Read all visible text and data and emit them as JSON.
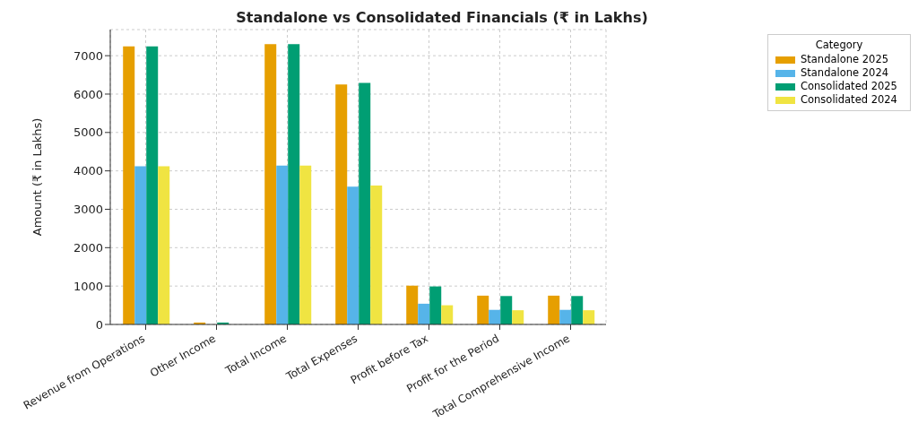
{
  "chart_data": {
    "type": "bar",
    "title": "Standalone vs Consolidated Financials (₹ in Lakhs)",
    "ylabel": "Amount (₹ in Lakhs)",
    "legend_title": "Category",
    "categories": [
      "Revenue from Operations",
      "Other Income",
      "Total Income",
      "Total Expenses",
      "Profit before Tax",
      "Profit for the Period",
      "Total Comprehensive Income"
    ],
    "series": [
      {
        "name": "Standalone 2025",
        "color": "#e69f00",
        "values": [
          7240,
          50,
          7300,
          6250,
          1010,
          750,
          750
        ]
      },
      {
        "name": "Standalone 2024",
        "color": "#56b4e9",
        "values": [
          4120,
          0,
          4140,
          3590,
          540,
          380,
          380
        ]
      },
      {
        "name": "Consolidated 2025",
        "color": "#009e73",
        "values": [
          7240,
          50,
          7300,
          6290,
          990,
          740,
          740
        ]
      },
      {
        "name": "Consolidated 2024",
        "color": "#f0e442",
        "values": [
          4120,
          0,
          4140,
          3620,
          500,
          370,
          370
        ]
      }
    ],
    "ylim": [
      0,
      7680
    ],
    "yticks": [
      0,
      1000,
      2000,
      3000,
      4000,
      5000,
      6000,
      7000
    ],
    "grid": true,
    "legend": "top right"
  }
}
